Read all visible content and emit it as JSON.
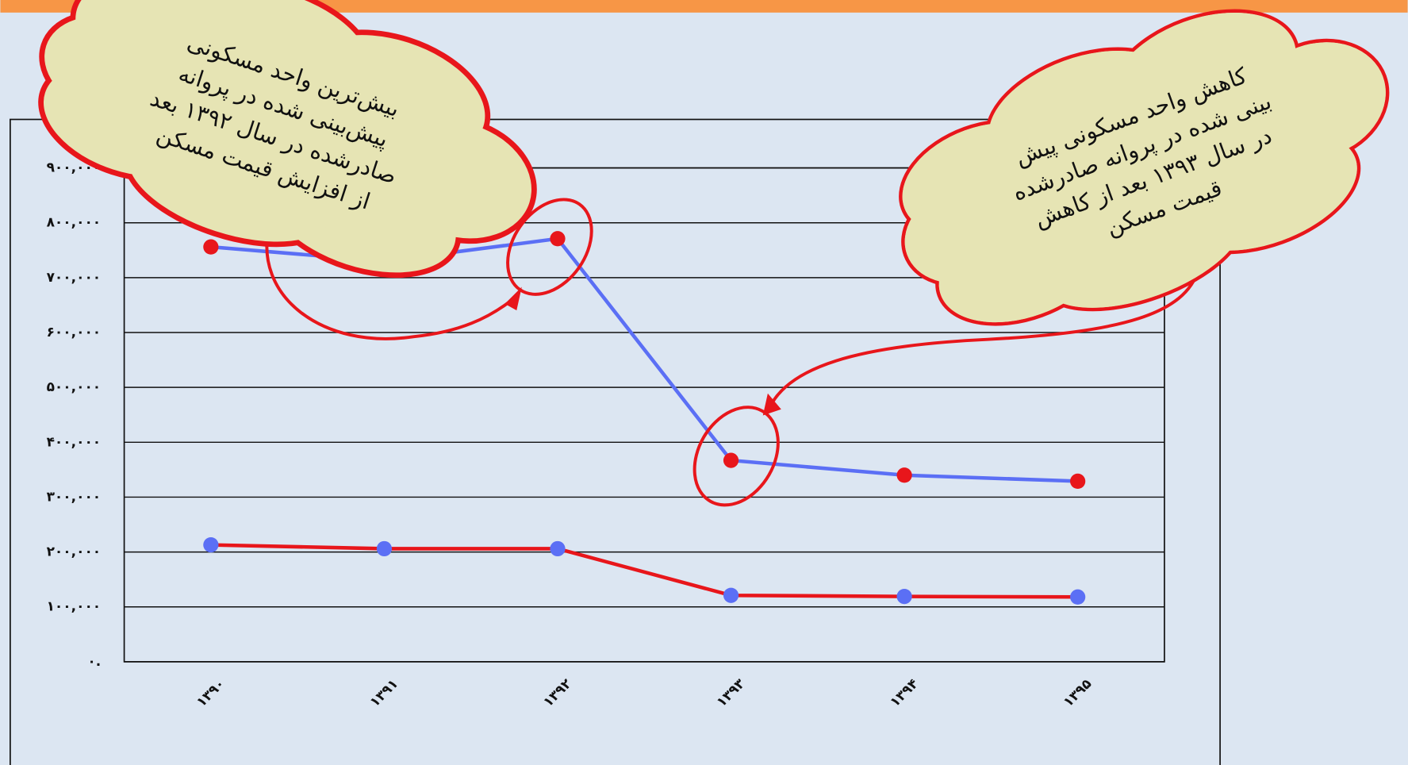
{
  "chart_data": {
    "type": "line",
    "categories": [
      "۱۳۹۰",
      "۱۳۹۱",
      "۱۳۹۲",
      "۱۳۹۳",
      "۱۳۹۴",
      "۱۳۹۵"
    ],
    "series": [
      {
        "color": "#5b6ff5",
        "marker_color": "#e8161b",
        "values": [
          756000,
          730000,
          771000,
          367000,
          340000,
          329000
        ]
      },
      {
        "color": "#e8161b",
        "marker_color": "#5b6ff5",
        "values": [
          213000,
          206000,
          206000,
          121000,
          119000,
          118000
        ]
      }
    ],
    "ylim": [
      0,
      900000
    ],
    "yticks": [
      {
        "value": 0,
        "label": "۰."
      },
      {
        "value": 100000,
        "label": "۱۰۰,۰۰۰"
      },
      {
        "value": 200000,
        "label": "۲۰۰,۰۰۰"
      },
      {
        "value": 300000,
        "label": "۳۰۰,۰۰۰"
      },
      {
        "value": 400000,
        "label": "۴۰۰,۰۰۰"
      },
      {
        "value": 500000,
        "label": "۵۰۰,۰۰۰"
      },
      {
        "value": 600000,
        "label": "۶۰۰,۰۰۰"
      },
      {
        "value": 700000,
        "label": "۷۰۰,۰۰۰"
      },
      {
        "value": 800000,
        "label": "۸۰۰,۰۰۰"
      },
      {
        "value": 900000,
        "label": "۹۰۰,۰۰۰"
      }
    ],
    "grid": true,
    "annotations": [
      [
        "بیش‌ترین واحد مسکونی",
        "پیش‌بینی شده در پروانه",
        "صادرشده در سال ۱۳۹۲ بعد",
        "از افزایش قیمت مسکن"
      ],
      [
        "کاهش واحد مسکونی پیش",
        "بینی شده در پروانه صادرشده",
        "در سال ۱۳۹۳ بعد از کاهش",
        "قیمت مسکن"
      ]
    ]
  }
}
